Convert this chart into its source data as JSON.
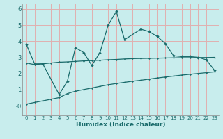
{
  "xlabel": "Humidex (Indice chaleur)",
  "x": [
    0,
    1,
    2,
    3,
    4,
    5,
    6,
    7,
    8,
    9,
    10,
    11,
    12,
    13,
    14,
    15,
    16,
    17,
    18,
    19,
    20,
    21,
    22,
    23
  ],
  "line1": [
    3.8,
    2.6,
    2.6,
    null,
    0.7,
    1.5,
    3.6,
    3.3,
    2.5,
    3.3,
    5.0,
    5.85,
    4.1,
    null,
    4.75,
    4.6,
    4.3,
    3.85,
    3.1,
    3.05,
    3.05,
    3.0,
    2.85,
    2.2
  ],
  "line2": [
    2.65,
    2.55,
    2.6,
    2.65,
    2.7,
    2.72,
    2.75,
    2.78,
    2.8,
    2.82,
    2.85,
    2.87,
    2.9,
    2.92,
    2.93,
    2.94,
    2.95,
    2.96,
    2.97,
    2.98,
    2.98,
    2.99,
    2.99,
    3.0
  ],
  "line3": [
    0.1,
    0.2,
    0.3,
    0.4,
    0.5,
    0.75,
    0.9,
    1.0,
    1.1,
    1.2,
    1.3,
    1.38,
    1.45,
    1.52,
    1.58,
    1.65,
    1.72,
    1.78,
    1.84,
    1.9,
    1.95,
    2.0,
    2.05,
    2.1
  ],
  "color": "#1a6b6b",
  "bg_color": "#c8eded",
  "grid_color": "#e0b0b0",
  "ylim": [
    -0.6,
    6.3
  ],
  "xlim": [
    -0.5,
    23.5
  ],
  "yticks": [
    0,
    1,
    2,
    3,
    4,
    5,
    6
  ],
  "ytick_labels": [
    "-0",
    "1",
    "2",
    "3",
    "4",
    "5",
    "6"
  ],
  "xticks": [
    0,
    1,
    2,
    3,
    4,
    5,
    6,
    7,
    8,
    9,
    10,
    11,
    12,
    13,
    14,
    15,
    16,
    17,
    18,
    19,
    20,
    21,
    22,
    23
  ]
}
